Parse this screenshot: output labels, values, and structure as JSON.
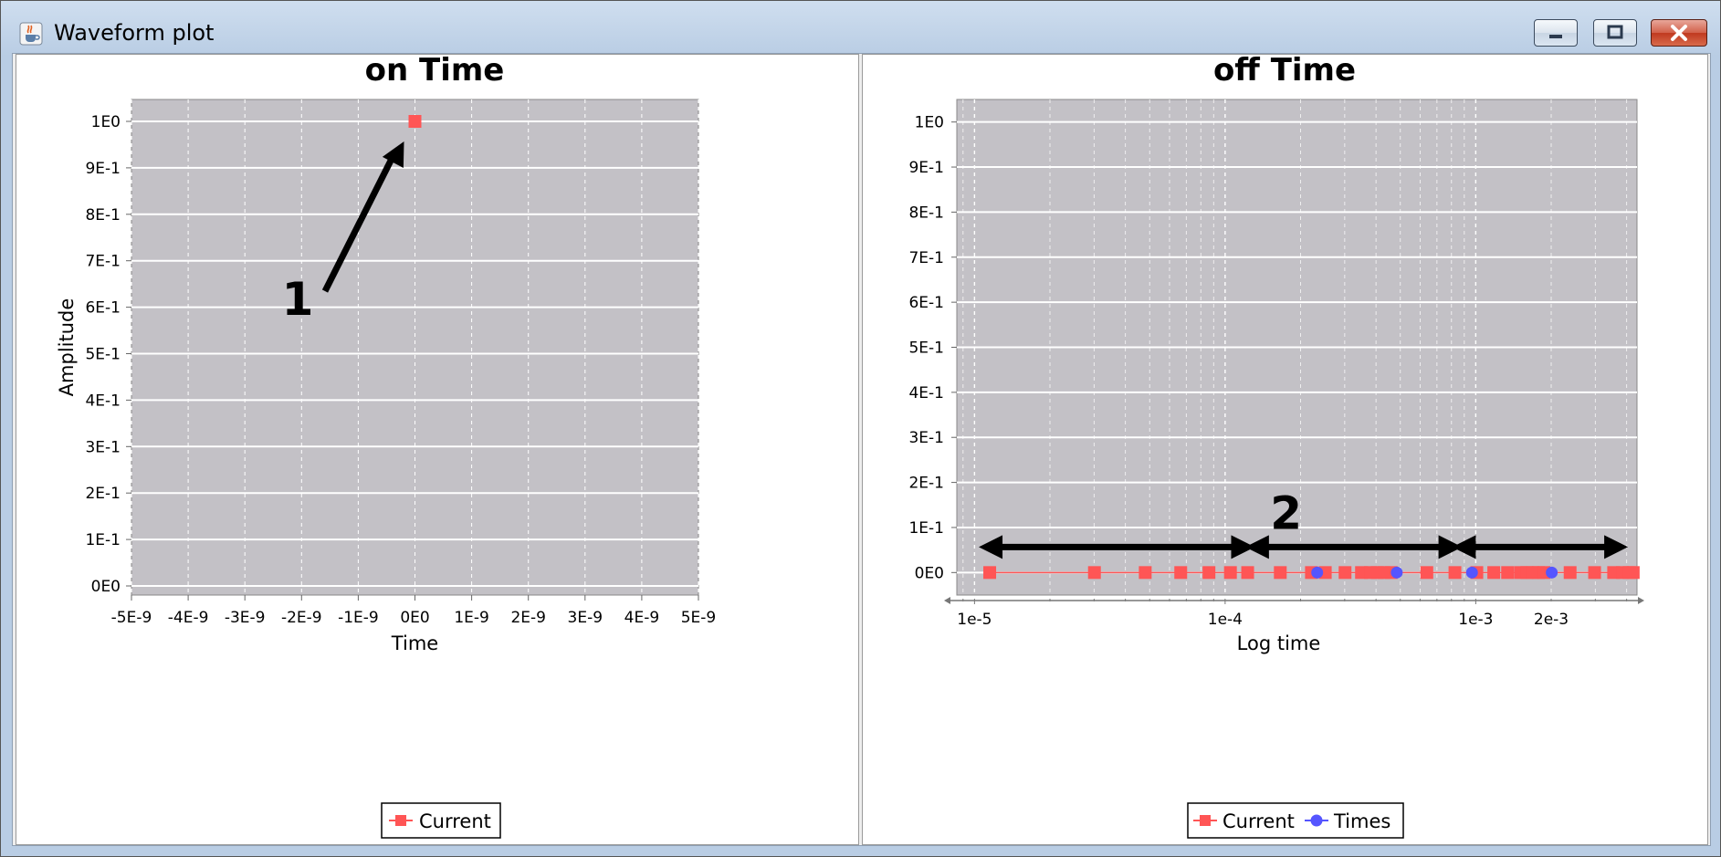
{
  "window": {
    "title": "Waveform plot",
    "icon": "java-cup-icon",
    "buttons": [
      "minimize-icon",
      "maximize-icon",
      "close-icon"
    ]
  },
  "charts": {
    "left": {
      "annotation": "1",
      "legend": [
        {
          "label": "Current",
          "color": "#ff5555",
          "marker": "square"
        }
      ]
    },
    "right": {
      "annotation": "2",
      "legend": [
        {
          "label": "Current",
          "color": "#ff5555",
          "marker": "square"
        },
        {
          "label": "Times",
          "color": "#5555ff",
          "marker": "circle"
        }
      ]
    }
  },
  "chart_data": [
    {
      "type": "scatter",
      "title": "on Time",
      "xlabel": "Time",
      "ylabel": "Amplitude",
      "xlim": [
        -5e-09,
        5e-09
      ],
      "ylim": [
        0,
        1
      ],
      "x_ticks": [
        "-5E-9",
        "-4E-9",
        "-3E-9",
        "-2E-9",
        "-1E-9",
        "0E0",
        "1E-9",
        "2E-9",
        "3E-9",
        "4E-9",
        "5E-9"
      ],
      "y_ticks": [
        "0E0",
        "1E-1",
        "2E-1",
        "3E-1",
        "4E-1",
        "5E-1",
        "6E-1",
        "7E-1",
        "8E-1",
        "9E-1",
        "1E0"
      ],
      "background": "#c3c1c6",
      "grid": true,
      "legend_position": "bottom",
      "series": [
        {
          "name": "Current",
          "color": "#ff5555",
          "marker": "square",
          "points": [
            [
              0,
              1
            ]
          ]
        }
      ]
    },
    {
      "type": "line",
      "title": "off Time",
      "xlabel": "Log time",
      "ylabel": "",
      "x_scale": "log",
      "xlim": [
        8.5e-06,
        0.0044
      ],
      "ylim": [
        -0.05,
        1.05
      ],
      "x_ticks": [
        "1e-5",
        "1e-4",
        "1e-3",
        "2e-3"
      ],
      "y_ticks": [
        "0E0",
        "1E-1",
        "2E-1",
        "3E-1",
        "4E-1",
        "5E-1",
        "6E-1",
        "7E-1",
        "8E-1",
        "9E-1",
        "1E0"
      ],
      "background": "#c3c1c6",
      "grid": true,
      "legend_position": "bottom",
      "series": [
        {
          "name": "Current",
          "color": "#ff5555",
          "marker": "square",
          "x": [
            1.15e-05,
            3.01e-05,
            4.8e-05,
            6.65e-05,
            8.62e-05,
            0.000105,
            0.000123,
            0.000166,
            0.000221,
            0.000251,
            0.000301,
            0.00035,
            0.00038,
            0.000405,
            0.00043,
            0.00046,
            0.000638,
            0.000826,
            0.00101,
            0.00118,
            0.00134,
            0.00151,
            0.0016,
            0.00169,
            0.00178,
            0.00187,
            0.00238,
            0.00298,
            0.00355,
            0.00385,
            0.0041,
            0.00425
          ],
          "y": [
            0,
            0,
            0,
            0,
            0,
            0,
            0,
            0,
            0,
            0,
            0,
            0,
            0,
            0,
            0,
            0,
            0,
            0,
            0,
            0,
            0,
            0,
            0,
            0,
            0,
            0,
            0,
            0,
            0,
            0,
            0,
            0
          ]
        },
        {
          "name": "Times",
          "color": "#5555ff",
          "marker": "circle",
          "x": [
            0.000233,
            0.000484,
            0.000966,
            0.00201
          ],
          "y": [
            0,
            0,
            0,
            0
          ]
        }
      ],
      "annotations": [
        {
          "text": "2",
          "ranges": [
            [
              1.15e-05,
              0.000125
            ],
            [
              0.000133,
              0.00084
            ],
            [
              0.00089,
              0.00385
            ]
          ]
        }
      ]
    }
  ]
}
